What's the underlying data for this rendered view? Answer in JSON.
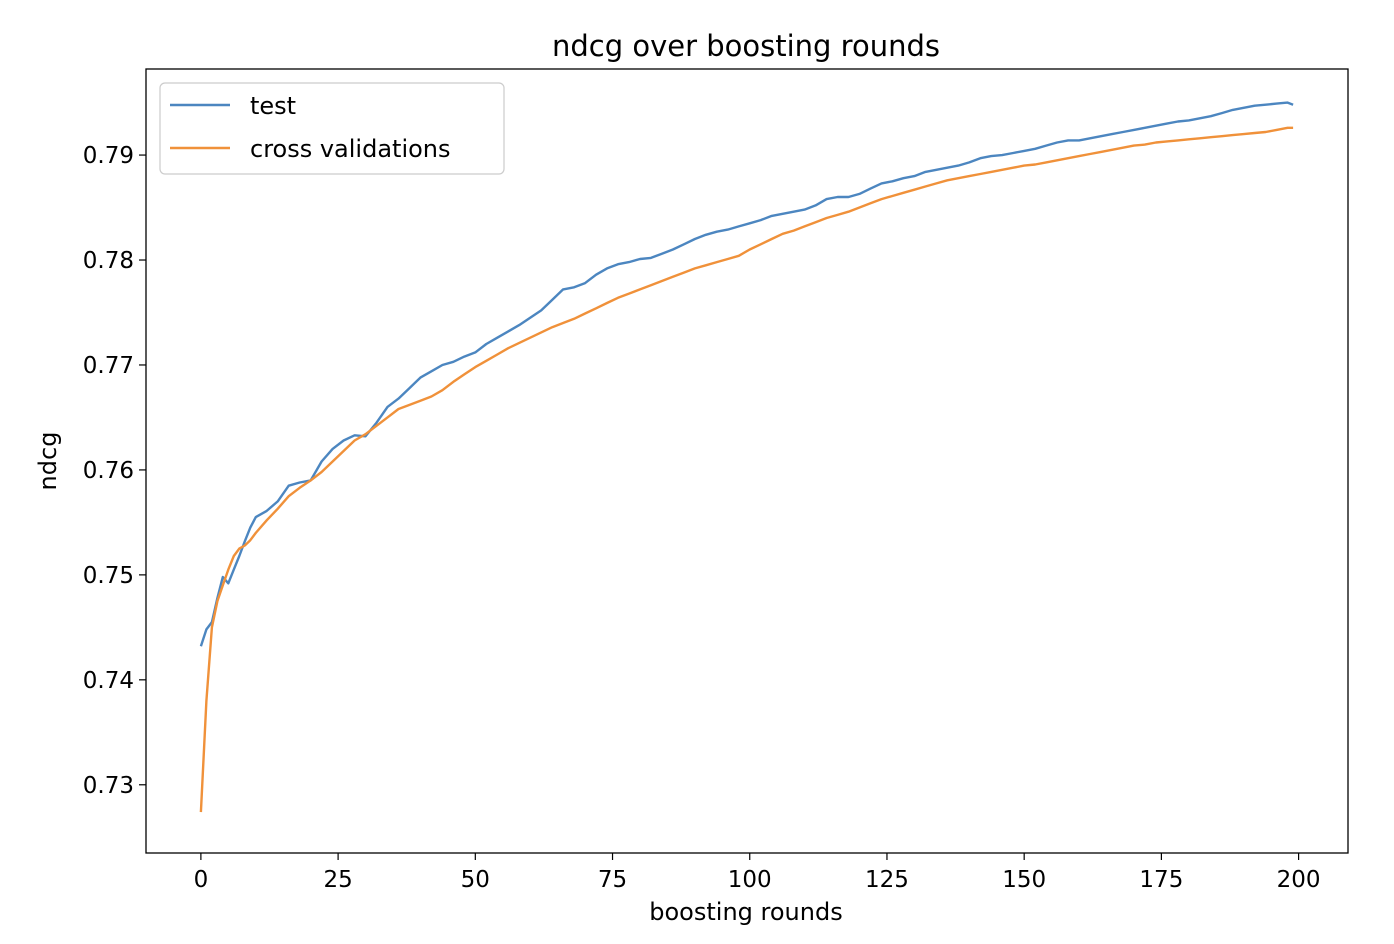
{
  "chart_data": {
    "type": "line",
    "title": "ndcg over boosting rounds",
    "xlabel": "boosting rounds",
    "ylabel": "ndcg",
    "xlim": [
      -10,
      209
    ],
    "ylim": [
      0.7235,
      0.7982
    ],
    "xticks": [
      0,
      25,
      50,
      75,
      100,
      125,
      150,
      175,
      200
    ],
    "xtick_labels": [
      "0",
      "25",
      "50",
      "75",
      "100",
      "125",
      "150",
      "175",
      "200"
    ],
    "yticks": [
      0.73,
      0.74,
      0.75,
      0.76,
      0.77,
      0.78,
      0.79
    ],
    "ytick_labels": [
      "0.73",
      "0.74",
      "0.75",
      "0.76",
      "0.77",
      "0.78",
      "0.79"
    ],
    "grid": false,
    "legend_position": "top-left",
    "series": [
      {
        "name": "test",
        "color": "#4c86c0",
        "points": [
          [
            0,
            0.7432
          ],
          [
            1,
            0.7448
          ],
          [
            2,
            0.7455
          ],
          [
            3,
            0.7478
          ],
          [
            4,
            0.7498
          ],
          [
            5,
            0.7492
          ],
          [
            6,
            0.7505
          ],
          [
            7,
            0.7518
          ],
          [
            8,
            0.7532
          ],
          [
            9,
            0.7545
          ],
          [
            10,
            0.7555
          ],
          [
            12,
            0.7561
          ],
          [
            14,
            0.757
          ],
          [
            16,
            0.7585
          ],
          [
            18,
            0.7588
          ],
          [
            20,
            0.759
          ],
          [
            22,
            0.7608
          ],
          [
            24,
            0.762
          ],
          [
            26,
            0.7628
          ],
          [
            28,
            0.7633
          ],
          [
            30,
            0.7632
          ],
          [
            32,
            0.7645
          ],
          [
            34,
            0.766
          ],
          [
            36,
            0.7668
          ],
          [
            38,
            0.7678
          ],
          [
            40,
            0.7688
          ],
          [
            42,
            0.7694
          ],
          [
            44,
            0.77
          ],
          [
            46,
            0.7703
          ],
          [
            48,
            0.7708
          ],
          [
            50,
            0.7712
          ],
          [
            52,
            0.772
          ],
          [
            54,
            0.7726
          ],
          [
            56,
            0.7732
          ],
          [
            58,
            0.7738
          ],
          [
            60,
            0.7745
          ],
          [
            62,
            0.7752
          ],
          [
            64,
            0.7762
          ],
          [
            66,
            0.7772
          ],
          [
            68,
            0.7774
          ],
          [
            70,
            0.7778
          ],
          [
            72,
            0.7786
          ],
          [
            74,
            0.7792
          ],
          [
            76,
            0.7796
          ],
          [
            78,
            0.7798
          ],
          [
            80,
            0.7801
          ],
          [
            82,
            0.7802
          ],
          [
            84,
            0.7806
          ],
          [
            86,
            0.781
          ],
          [
            88,
            0.7815
          ],
          [
            90,
            0.782
          ],
          [
            92,
            0.7824
          ],
          [
            94,
            0.7827
          ],
          [
            96,
            0.7829
          ],
          [
            98,
            0.7832
          ],
          [
            100,
            0.7835
          ],
          [
            102,
            0.7838
          ],
          [
            104,
            0.7842
          ],
          [
            106,
            0.7844
          ],
          [
            108,
            0.7846
          ],
          [
            110,
            0.7848
          ],
          [
            112,
            0.7852
          ],
          [
            114,
            0.7858
          ],
          [
            116,
            0.786
          ],
          [
            118,
            0.786
          ],
          [
            120,
            0.7863
          ],
          [
            122,
            0.7868
          ],
          [
            124,
            0.7873
          ],
          [
            126,
            0.7875
          ],
          [
            128,
            0.7878
          ],
          [
            130,
            0.788
          ],
          [
            132,
            0.7884
          ],
          [
            134,
            0.7886
          ],
          [
            136,
            0.7888
          ],
          [
            138,
            0.789
          ],
          [
            140,
            0.7893
          ],
          [
            142,
            0.7897
          ],
          [
            144,
            0.7899
          ],
          [
            146,
            0.79
          ],
          [
            148,
            0.7902
          ],
          [
            150,
            0.7904
          ],
          [
            152,
            0.7906
          ],
          [
            154,
            0.7909
          ],
          [
            156,
            0.7912
          ],
          [
            158,
            0.7914
          ],
          [
            160,
            0.7914
          ],
          [
            162,
            0.7916
          ],
          [
            164,
            0.7918
          ],
          [
            166,
            0.792
          ],
          [
            168,
            0.7922
          ],
          [
            170,
            0.7924
          ],
          [
            172,
            0.7926
          ],
          [
            174,
            0.7928
          ],
          [
            176,
            0.793
          ],
          [
            178,
            0.7932
          ],
          [
            180,
            0.7933
          ],
          [
            182,
            0.7935
          ],
          [
            184,
            0.7937
          ],
          [
            186,
            0.794
          ],
          [
            188,
            0.7943
          ],
          [
            190,
            0.7945
          ],
          [
            192,
            0.7947
          ],
          [
            194,
            0.7948
          ],
          [
            196,
            0.7949
          ],
          [
            198,
            0.795
          ],
          [
            199,
            0.7948
          ]
        ]
      },
      {
        "name": "cross validations",
        "color": "#f0913a",
        "points": [
          [
            0,
            0.7274
          ],
          [
            1,
            0.738
          ],
          [
            2,
            0.745
          ],
          [
            3,
            0.7475
          ],
          [
            4,
            0.749
          ],
          [
            5,
            0.7505
          ],
          [
            6,
            0.7518
          ],
          [
            7,
            0.7525
          ],
          [
            8,
            0.7528
          ],
          [
            9,
            0.7533
          ],
          [
            10,
            0.754
          ],
          [
            12,
            0.7552
          ],
          [
            14,
            0.7563
          ],
          [
            16,
            0.7575
          ],
          [
            18,
            0.7583
          ],
          [
            20,
            0.759
          ],
          [
            22,
            0.7598
          ],
          [
            24,
            0.7608
          ],
          [
            26,
            0.7618
          ],
          [
            28,
            0.7628
          ],
          [
            30,
            0.7634
          ],
          [
            32,
            0.7642
          ],
          [
            34,
            0.765
          ],
          [
            36,
            0.7658
          ],
          [
            38,
            0.7662
          ],
          [
            40,
            0.7666
          ],
          [
            42,
            0.767
          ],
          [
            44,
            0.7676
          ],
          [
            46,
            0.7684
          ],
          [
            48,
            0.7691
          ],
          [
            50,
            0.7698
          ],
          [
            52,
            0.7704
          ],
          [
            54,
            0.771
          ],
          [
            56,
            0.7716
          ],
          [
            58,
            0.7721
          ],
          [
            60,
            0.7726
          ],
          [
            62,
            0.7731
          ],
          [
            64,
            0.7736
          ],
          [
            66,
            0.774
          ],
          [
            68,
            0.7744
          ],
          [
            70,
            0.7749
          ],
          [
            72,
            0.7754
          ],
          [
            74,
            0.7759
          ],
          [
            76,
            0.7764
          ],
          [
            78,
            0.7768
          ],
          [
            80,
            0.7772
          ],
          [
            82,
            0.7776
          ],
          [
            84,
            0.778
          ],
          [
            86,
            0.7784
          ],
          [
            88,
            0.7788
          ],
          [
            90,
            0.7792
          ],
          [
            92,
            0.7795
          ],
          [
            94,
            0.7798
          ],
          [
            96,
            0.7801
          ],
          [
            98,
            0.7804
          ],
          [
            100,
            0.781
          ],
          [
            102,
            0.7815
          ],
          [
            104,
            0.782
          ],
          [
            106,
            0.7825
          ],
          [
            108,
            0.7828
          ],
          [
            110,
            0.7832
          ],
          [
            112,
            0.7836
          ],
          [
            114,
            0.784
          ],
          [
            116,
            0.7843
          ],
          [
            118,
            0.7846
          ],
          [
            120,
            0.785
          ],
          [
            122,
            0.7854
          ],
          [
            124,
            0.7858
          ],
          [
            126,
            0.7861
          ],
          [
            128,
            0.7864
          ],
          [
            130,
            0.7867
          ],
          [
            132,
            0.787
          ],
          [
            134,
            0.7873
          ],
          [
            136,
            0.7876
          ],
          [
            138,
            0.7878
          ],
          [
            140,
            0.788
          ],
          [
            142,
            0.7882
          ],
          [
            144,
            0.7884
          ],
          [
            146,
            0.7886
          ],
          [
            148,
            0.7888
          ],
          [
            150,
            0.789
          ],
          [
            152,
            0.7891
          ],
          [
            154,
            0.7893
          ],
          [
            156,
            0.7895
          ],
          [
            158,
            0.7897
          ],
          [
            160,
            0.7899
          ],
          [
            162,
            0.7901
          ],
          [
            164,
            0.7903
          ],
          [
            166,
            0.7905
          ],
          [
            168,
            0.7907
          ],
          [
            170,
            0.7909
          ],
          [
            172,
            0.791
          ],
          [
            174,
            0.7912
          ],
          [
            176,
            0.7913
          ],
          [
            178,
            0.7914
          ],
          [
            180,
            0.7915
          ],
          [
            182,
            0.7916
          ],
          [
            184,
            0.7917
          ],
          [
            186,
            0.7918
          ],
          [
            188,
            0.7919
          ],
          [
            190,
            0.792
          ],
          [
            192,
            0.7921
          ],
          [
            194,
            0.7922
          ],
          [
            196,
            0.7924
          ],
          [
            198,
            0.7926
          ],
          [
            199,
            0.7926
          ]
        ]
      }
    ]
  }
}
